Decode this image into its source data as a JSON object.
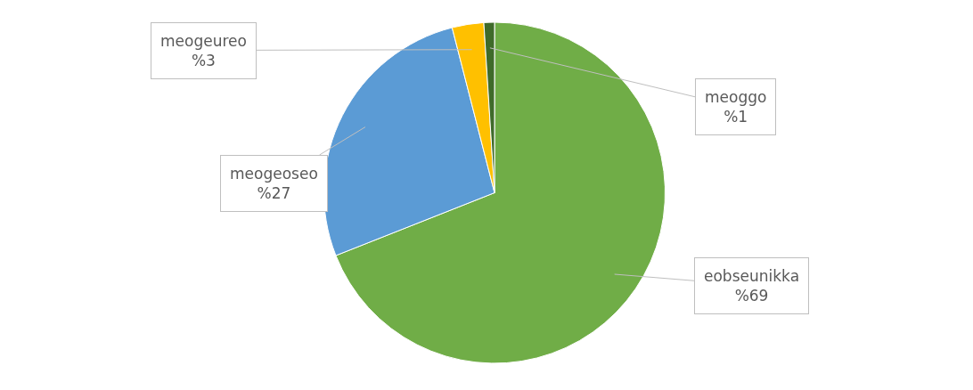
{
  "chart_data": {
    "type": "pie",
    "categories": [
      "eobseunikka",
      "meogeoseo",
      "meogeureo",
      "meoggo"
    ],
    "values": [
      69,
      27,
      3,
      1
    ],
    "value_labels": [
      "%69",
      "%27",
      "%3",
      "%1"
    ],
    "colors": [
      "#70ad47",
      "#5b9bd5",
      "#ffc000",
      "#3f6b2a"
    ],
    "legend": false
  }
}
